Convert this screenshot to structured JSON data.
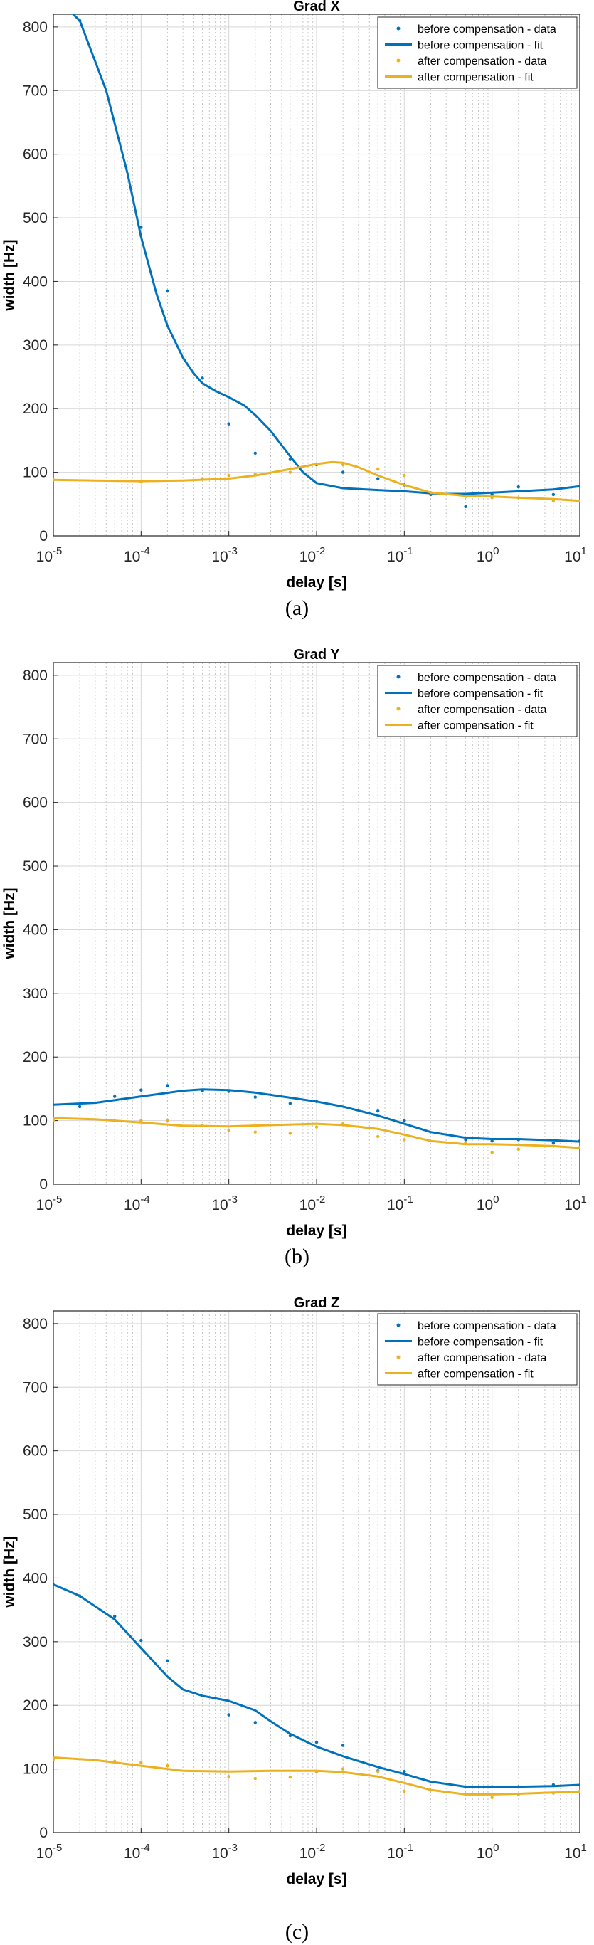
{
  "colors": {
    "before": "#0072BD",
    "after": "#EDB120",
    "grid": "#d6d6d6",
    "axis": "#262626"
  },
  "chart_data": [
    {
      "type": "scatter",
      "title": "Grad X",
      "caption": "(a)",
      "xlabel": "delay [s]",
      "ylabel": "width [Hz]",
      "xscale": "log",
      "xlim": [
        1e-05,
        10
      ],
      "ylim": [
        0,
        820
      ],
      "xticks": [
        1e-05,
        0.0001,
        0.001,
        0.01,
        0.1,
        1,
        10
      ],
      "xtick_labels": [
        [
          "10",
          "-5"
        ],
        [
          "10",
          "-4"
        ],
        [
          "10",
          "-3"
        ],
        [
          "10",
          "-2"
        ],
        [
          "10",
          "-1"
        ],
        [
          "10",
          "0"
        ],
        [
          "10",
          "1"
        ]
      ],
      "yticks": [
        0,
        100,
        200,
        300,
        400,
        500,
        600,
        700,
        800
      ],
      "grid": true,
      "legend_position": "top-right",
      "series": [
        {
          "name": "before compensation - data",
          "kind": "points",
          "color": "#0072BD",
          "x": [
            2e-05,
            0.0001,
            0.0002,
            0.0005,
            0.001,
            0.002,
            0.005,
            0.01,
            0.02,
            0.05,
            0.1,
            0.2,
            0.5,
            1,
            2,
            5,
            10
          ],
          "y": [
            810,
            485,
            385,
            248,
            176,
            130,
            120,
            112,
            100,
            90,
            80,
            65,
            46,
            65,
            77,
            65,
            78
          ]
        },
        {
          "name": "before compensation - fit",
          "kind": "line",
          "color": "#0072BD",
          "x": [
            1e-05,
            2e-05,
            4e-05,
            7e-05,
            0.0001,
            0.00015,
            0.0002,
            0.0003,
            0.0004,
            0.0005,
            0.0007,
            0.001,
            0.0015,
            0.002,
            0.003,
            0.005,
            0.007,
            0.01,
            0.02,
            0.05,
            0.1,
            0.2,
            0.3,
            0.5,
            1,
            2,
            5,
            10
          ],
          "y": [
            850,
            810,
            700,
            570,
            470,
            380,
            330,
            280,
            255,
            240,
            228,
            218,
            205,
            190,
            165,
            125,
            100,
            83,
            75,
            72,
            70,
            67,
            66,
            66,
            68,
            70,
            73,
            78
          ]
        },
        {
          "name": "after compensation - data",
          "kind": "points",
          "color": "#EDB120",
          "x": [
            1e-05,
            0.0001,
            0.0005,
            0.001,
            0.002,
            0.005,
            0.01,
            0.02,
            0.05,
            0.1,
            0.2,
            0.5,
            1,
            2,
            5,
            10
          ],
          "y": [
            88,
            85,
            90,
            95,
            97,
            100,
            113,
            112,
            105,
            95,
            68,
            62,
            60,
            60,
            55,
            55
          ]
        },
        {
          "name": "after compensation - fit",
          "kind": "line",
          "color": "#EDB120",
          "x": [
            1e-05,
            3e-05,
            0.0001,
            0.0003,
            0.001,
            0.002,
            0.005,
            0.01,
            0.015,
            0.02,
            0.03,
            0.05,
            0.1,
            0.2,
            0.5,
            1,
            2,
            5,
            10
          ],
          "y": [
            88,
            87,
            86,
            87,
            90,
            95,
            105,
            113,
            116,
            115,
            108,
            95,
            80,
            68,
            63,
            62,
            60,
            58,
            55
          ]
        }
      ]
    },
    {
      "type": "scatter",
      "title": "Grad Y",
      "caption": "(b)",
      "xlabel": "delay [s]",
      "ylabel": "width [Hz]",
      "xscale": "log",
      "xlim": [
        1e-05,
        10
      ],
      "ylim": [
        0,
        820
      ],
      "xticks": [
        1e-05,
        0.0001,
        0.001,
        0.01,
        0.1,
        1,
        10
      ],
      "xtick_labels": [
        [
          "10",
          "-5"
        ],
        [
          "10",
          "-4"
        ],
        [
          "10",
          "-3"
        ],
        [
          "10",
          "-2"
        ],
        [
          "10",
          "-1"
        ],
        [
          "10",
          "0"
        ],
        [
          "10",
          "1"
        ]
      ],
      "yticks": [
        0,
        100,
        200,
        300,
        400,
        500,
        600,
        700,
        800
      ],
      "grid": true,
      "legend_position": "top-right",
      "series": [
        {
          "name": "before compensation - data",
          "kind": "points",
          "color": "#0072BD",
          "x": [
            2e-05,
            5e-05,
            0.0001,
            0.0002,
            0.0005,
            0.001,
            0.002,
            0.005,
            0.01,
            0.05,
            0.1,
            0.5,
            1,
            2,
            5,
            10
          ],
          "y": [
            122,
            138,
            148,
            155,
            147,
            146,
            137,
            127,
            130,
            115,
            100,
            70,
            68,
            70,
            65,
            68
          ]
        },
        {
          "name": "before compensation - fit",
          "kind": "line",
          "color": "#0072BD",
          "x": [
            1e-05,
            3e-05,
            0.0001,
            0.0003,
            0.0005,
            0.001,
            0.002,
            0.005,
            0.01,
            0.02,
            0.05,
            0.1,
            0.2,
            0.5,
            1,
            2,
            5,
            10
          ],
          "y": [
            125,
            128,
            138,
            147,
            149,
            148,
            144,
            136,
            130,
            122,
            108,
            95,
            82,
            73,
            71,
            71,
            69,
            67
          ]
        },
        {
          "name": "after compensation - data",
          "kind": "points",
          "color": "#EDB120",
          "x": [
            1e-05,
            5e-05,
            0.0001,
            0.0002,
            0.0005,
            0.001,
            0.002,
            0.005,
            0.01,
            0.02,
            0.05,
            0.1,
            0.5,
            1,
            2,
            5,
            10
          ],
          "y": [
            100,
            100,
            100,
            100,
            92,
            85,
            82,
            80,
            90,
            95,
            75,
            70,
            65,
            50,
            55,
            60,
            58
          ]
        },
        {
          "name": "after compensation - fit",
          "kind": "line",
          "color": "#EDB120",
          "x": [
            1e-05,
            3e-05,
            0.0001,
            0.0003,
            0.001,
            0.003,
            0.01,
            0.02,
            0.05,
            0.1,
            0.2,
            0.5,
            1,
            2,
            5,
            10
          ],
          "y": [
            104,
            102,
            97,
            92,
            91,
            93,
            95,
            93,
            87,
            78,
            68,
            63,
            63,
            62,
            60,
            57
          ]
        }
      ]
    },
    {
      "type": "scatter",
      "title": "Grad Z",
      "caption": "(c)",
      "xlabel": "delay [s]",
      "ylabel": "width [Hz]",
      "xscale": "log",
      "xlim": [
        1e-05,
        10
      ],
      "ylim": [
        0,
        820
      ],
      "xticks": [
        1e-05,
        0.0001,
        0.001,
        0.01,
        0.1,
        1,
        10
      ],
      "xtick_labels": [
        [
          "10",
          "-5"
        ],
        [
          "10",
          "-4"
        ],
        [
          "10",
          "-3"
        ],
        [
          "10",
          "-2"
        ],
        [
          "10",
          "-1"
        ],
        [
          "10",
          "0"
        ],
        [
          "10",
          "1"
        ]
      ],
      "yticks": [
        0,
        100,
        200,
        300,
        400,
        500,
        600,
        700,
        800
      ],
      "grid": true,
      "legend_position": "top-right",
      "series": [
        {
          "name": "before compensation - data",
          "kind": "points",
          "color": "#0072BD",
          "x": [
            2e-05,
            5e-05,
            0.0001,
            0.0002,
            0.001,
            0.002,
            0.005,
            0.01,
            0.02,
            0.05,
            0.1,
            1,
            2,
            5
          ],
          "y": [
            372,
            340,
            302,
            270,
            185,
            173,
            152,
            142,
            137,
            97,
            96,
            72,
            72,
            75
          ]
        },
        {
          "name": "before compensation - fit",
          "kind": "line",
          "color": "#0072BD",
          "x": [
            1e-05,
            2e-05,
            5e-05,
            0.0001,
            0.0002,
            0.0003,
            0.0005,
            0.001,
            0.002,
            0.003,
            0.005,
            0.01,
            0.02,
            0.05,
            0.1,
            0.2,
            0.5,
            1,
            2,
            5,
            10
          ],
          "y": [
            390,
            372,
            335,
            290,
            245,
            225,
            215,
            207,
            192,
            175,
            155,
            135,
            120,
            103,
            92,
            80,
            72,
            72,
            72,
            73,
            75
          ]
        },
        {
          "name": "after compensation - data",
          "kind": "points",
          "color": "#EDB120",
          "x": [
            1e-05,
            5e-05,
            0.0001,
            0.0002,
            0.001,
            0.002,
            0.005,
            0.01,
            0.02,
            0.05,
            0.1,
            1,
            2,
            5,
            10
          ],
          "y": [
            115,
            112,
            110,
            105,
            88,
            85,
            87,
            95,
            100,
            96,
            65,
            55,
            60,
            62,
            65
          ]
        },
        {
          "name": "after compensation - fit",
          "kind": "line",
          "color": "#EDB120",
          "x": [
            1e-05,
            3e-05,
            0.0001,
            0.0003,
            0.001,
            0.003,
            0.01,
            0.02,
            0.05,
            0.1,
            0.2,
            0.5,
            1,
            2,
            5,
            10
          ],
          "y": [
            118,
            114,
            105,
            97,
            96,
            97,
            97,
            95,
            88,
            78,
            67,
            60,
            60,
            61,
            63,
            64
          ]
        }
      ]
    }
  ]
}
